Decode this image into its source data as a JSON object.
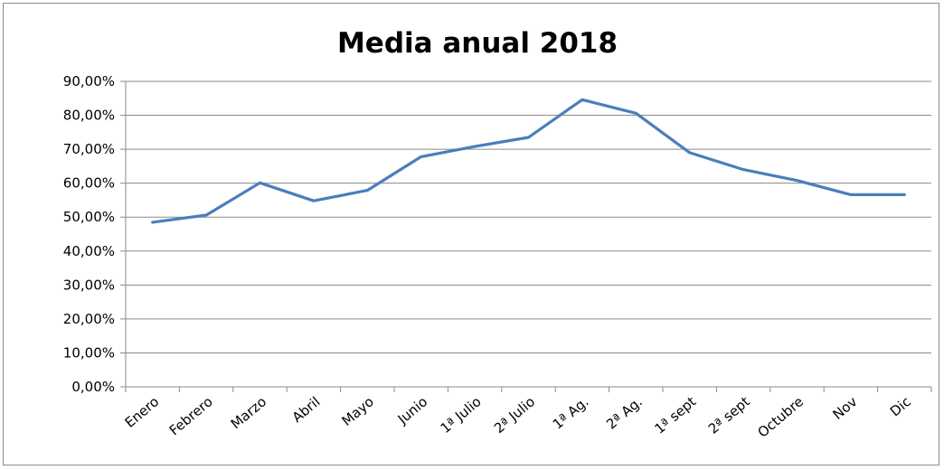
{
  "chart_data": {
    "type": "line",
    "title": "Media anual 2018",
    "xlabel": "",
    "ylabel": "",
    "categories": [
      "Enero",
      "Febrero",
      "Marzo",
      "Abril",
      "Mayo",
      "Junio",
      "1ª Julio",
      "2ª Julio",
      "1ª Ag.",
      "2ª Ag.",
      "1ª sept",
      "2ª sept",
      "Octubre",
      "Nov",
      "Dic"
    ],
    "series": [
      {
        "values": [
          48.5,
          50.6,
          60.1,
          54.8,
          57.9,
          67.8,
          70.8,
          73.5,
          84.6,
          80.6,
          69.0,
          64.0,
          60.8,
          56.6,
          56.6
        ]
      }
    ],
    "ylim": [
      0,
      90
    ],
    "yticks": [
      "0,00%",
      "10,00%",
      "20,00%",
      "30,00%",
      "40,00%",
      "50,00%",
      "60,00%",
      "70,00%",
      "80,00%",
      "90,00%"
    ],
    "grid": true,
    "legend": "none",
    "colors": {
      "series": "#4a7ebb",
      "grid": "#8a8a8a"
    }
  }
}
